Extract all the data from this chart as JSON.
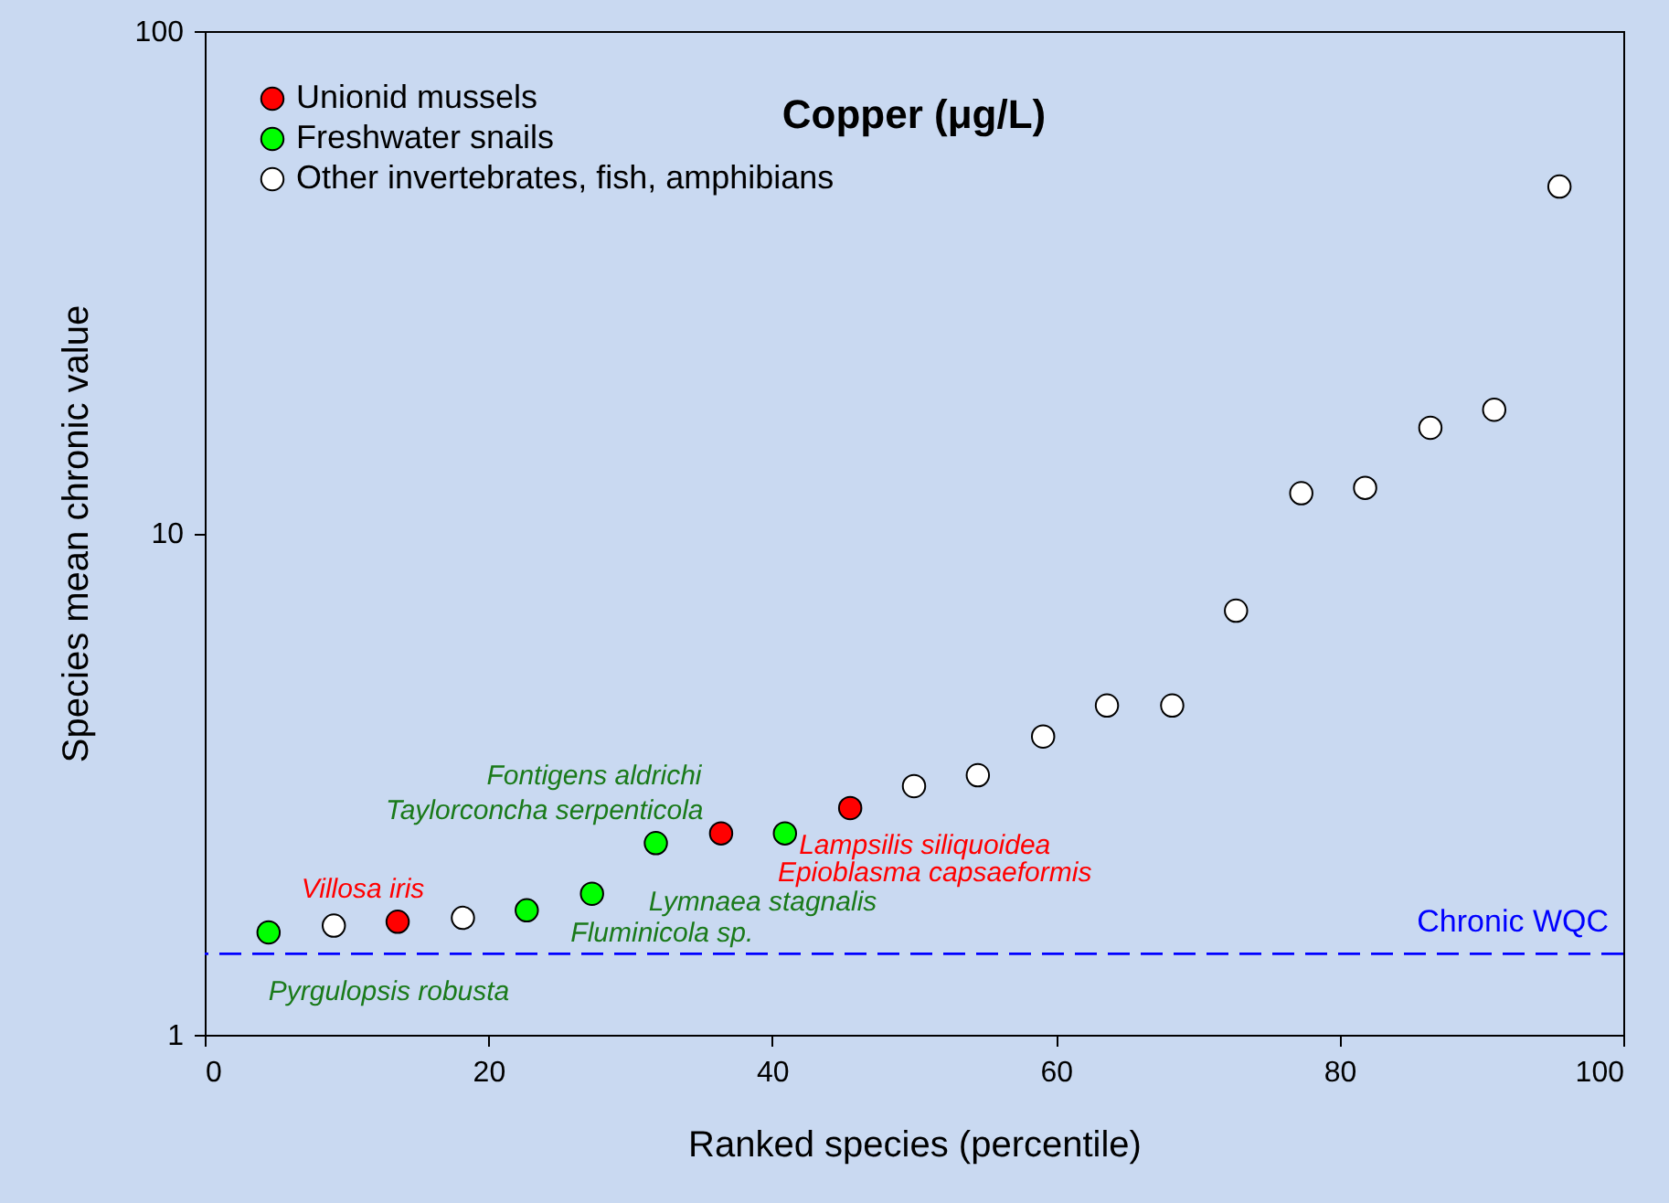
{
  "chart_data": {
    "type": "scatter",
    "title": "Copper (μg/L)",
    "xlabel": "Ranked species (percentile)",
    "ylabel": "Species mean chronic value",
    "xlim": [
      0,
      100
    ],
    "xticks": [
      0,
      20,
      40,
      60,
      80,
      100
    ],
    "ylim": [
      1,
      100
    ],
    "yticks": [
      1,
      10,
      100
    ],
    "log": true,
    "grid": false,
    "legend": "top left",
    "marker": "circle",
    "series": [
      {
        "name": "Unionid mussels",
        "color": "#ff0000",
        "x": [
          13.6,
          36.4,
          45.5
        ],
        "values": [
          1.68,
          2.52,
          2.83
        ]
      },
      {
        "name": "Freshwater snails",
        "color": "#00ff00",
        "x": [
          4.5,
          22.7,
          27.3,
          31.8,
          40.9
        ],
        "values": [
          1.6,
          1.77,
          1.91,
          2.41,
          2.52
        ]
      },
      {
        "name": "Other invertebrates, fish, amphibians",
        "color": "#ffffff",
        "x": [
          9.1,
          18.2,
          50.0,
          54.5,
          59.1,
          63.6,
          68.2,
          72.7,
          77.3,
          81.8,
          86.4,
          90.9,
          95.5
        ],
        "values": [
          1.65,
          1.71,
          3.13,
          3.29,
          3.93,
          4.53,
          4.53,
          7.0,
          12.0,
          12.3,
          16.2,
          17.6,
          49
        ]
      }
    ],
    "ref_lines": [
      {
        "axis": "y",
        "value": 1.45,
        "label": "Chronic WQC",
        "color": "#0000ff",
        "line_style": "dashed"
      }
    ],
    "annotations": [
      {
        "text": "Villosa iris",
        "x": 13.6,
        "y": 1.68
      },
      {
        "text": "Pyrgulopsis robusta",
        "x": 4.5,
        "y": 1.6
      },
      {
        "text": "Fluminicola sp.",
        "x": 22.7,
        "y": 1.77
      },
      {
        "text": "Lymnaea stagnalis",
        "x": 27.3,
        "y": 1.91
      },
      {
        "text": "Taylorconcha serpenticola",
        "x": 31.8,
        "y": 2.41
      },
      {
        "text": "Fontigens aldrichi",
        "x": 31.8,
        "y": 2.41
      },
      {
        "text": "Epioblasma capsaeformis",
        "x": 36.4,
        "y": 2.52
      },
      {
        "text": "Lampsilis siliquoidea",
        "x": 45.5,
        "y": 2.83
      }
    ]
  }
}
